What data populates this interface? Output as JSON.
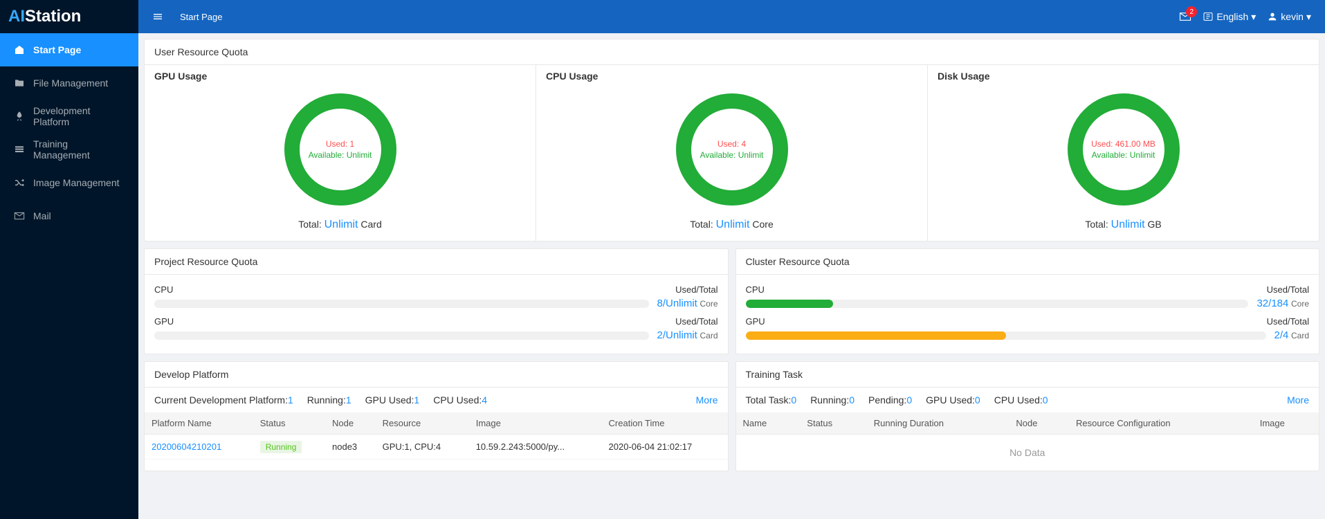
{
  "brand": {
    "ai": "AI",
    "station": "Station"
  },
  "sidebar": {
    "items": [
      {
        "label": "Start Page",
        "icon": "home",
        "active": true
      },
      {
        "label": "File Management",
        "icon": "folder",
        "active": false
      },
      {
        "label": "Development Platform",
        "icon": "rocket",
        "active": false
      },
      {
        "label": "Training Management",
        "icon": "list",
        "active": false
      },
      {
        "label": "Image Management",
        "icon": "shuffle",
        "active": false
      },
      {
        "label": "Mail",
        "icon": "mail",
        "active": false
      }
    ]
  },
  "topbar": {
    "toggle_icon": "menu",
    "title": "Start Page",
    "mail_badge": "2",
    "language": "English",
    "user": "kevin"
  },
  "user_quota": {
    "title": "User Resource Quota",
    "cells": [
      {
        "label": "GPU Usage",
        "used_label": "Used:",
        "used_value": "1",
        "avail_label": "Available:",
        "avail_value": "Unlimit",
        "total_label": "Total:",
        "total_value": "Unlimit",
        "unit": "Card",
        "ring_color": "#22ac38",
        "ring_bg": "#f0f0f0",
        "pct": 100
      },
      {
        "label": "CPU Usage",
        "used_label": "Used:",
        "used_value": "4",
        "avail_label": "Available:",
        "avail_value": "Unlimit",
        "total_label": "Total:",
        "total_value": "Unlimit",
        "unit": "Core",
        "ring_color": "#22ac38",
        "ring_bg": "#f0f0f0",
        "pct": 100
      },
      {
        "label": "Disk Usage",
        "used_label": "Used:",
        "used_value": "461.00 MB",
        "avail_label": "Available:",
        "avail_value": "Unlimit",
        "total_label": "Total:",
        "total_value": "Unlimit",
        "unit": "GB",
        "ring_color": "#22ac38",
        "ring_bg": "#f0f0f0",
        "pct": 100
      }
    ]
  },
  "project_quota": {
    "title": "Project Resource Quota",
    "rows": [
      {
        "name": "CPU",
        "header_right": "Used/Total",
        "value": "8/Unlimit",
        "unit": "Core",
        "pct": 0,
        "color": "#1890ff"
      },
      {
        "name": "GPU",
        "header_right": "Used/Total",
        "value": "2/Unlimit",
        "unit": "Card",
        "pct": 0,
        "color": "#1890ff"
      }
    ]
  },
  "cluster_quota": {
    "title": "Cluster Resource Quota",
    "rows": [
      {
        "name": "CPU",
        "header_right": "Used/Total",
        "value": "32/184",
        "unit": "Core",
        "pct": 17.4,
        "color": "#22ac38"
      },
      {
        "name": "GPU",
        "header_right": "Used/Total",
        "value": "2/4",
        "unit": "Card",
        "pct": 50,
        "color": "#faad14"
      }
    ]
  },
  "develop": {
    "title": "Develop Platform",
    "summary": [
      {
        "label": "Current Development Platform:",
        "value": "1"
      },
      {
        "label": "Running:",
        "value": "1"
      },
      {
        "label": "GPU Used:",
        "value": "1"
      },
      {
        "label": "CPU Used:",
        "value": "4"
      }
    ],
    "more": "More",
    "columns": [
      "Platform Name",
      "Status",
      "Node",
      "Resource",
      "Image",
      "Creation Time"
    ],
    "rows": [
      {
        "name": "20200604210201",
        "status": "Running",
        "node": "node3",
        "resource": "GPU:1, CPU:4",
        "image": "10.59.2.243:5000/py...",
        "time": "2020-06-04 21:02:17"
      }
    ]
  },
  "training": {
    "title": "Training Task",
    "summary": [
      {
        "label": "Total Task:",
        "value": "0"
      },
      {
        "label": "Running:",
        "value": "0"
      },
      {
        "label": "Pending:",
        "value": "0"
      },
      {
        "label": "GPU Used:",
        "value": "0"
      },
      {
        "label": "CPU Used:",
        "value": "0"
      }
    ],
    "more": "More",
    "columns": [
      "Name",
      "Status",
      "Running Duration",
      "Node",
      "Resource Configuration",
      "Image"
    ],
    "nodata": "No Data"
  },
  "colors": {
    "topbar": "#1565c0",
    "sidebar": "#001529",
    "active": "#1890ff",
    "green": "#22ac38",
    "orange": "#faad14",
    "red": "#ff4d4f",
    "link": "#1890ff"
  }
}
